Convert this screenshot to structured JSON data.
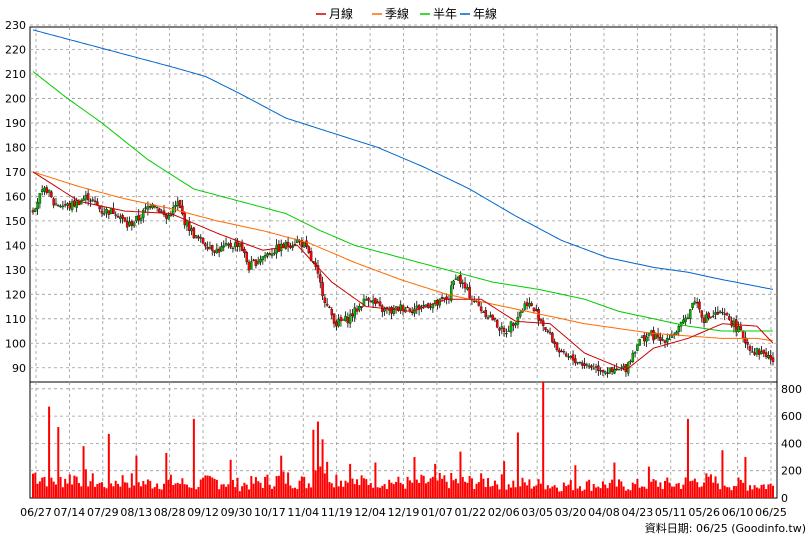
{
  "chart_data": {
    "type": "candlestick",
    "legend": [
      {
        "name": "月線",
        "color": "#cc0000"
      },
      {
        "name": "季線",
        "color": "#ff6a00"
      },
      {
        "name": "半年",
        "color": "#00cc00"
      },
      {
        "name": "年線",
        "color": "#0066cc"
      }
    ],
    "price_axis": {
      "min": 85,
      "max": 230,
      "ticks": [
        230,
        220,
        210,
        200,
        190,
        180,
        170,
        160,
        150,
        140,
        130,
        120,
        110,
        100,
        90
      ]
    },
    "volume_axis": {
      "min": 0,
      "max": 850,
      "ticks": [
        800,
        600,
        400,
        200,
        0
      ]
    },
    "x_ticks": [
      "06/27",
      "07/14",
      "07/29",
      "08/13",
      "08/28",
      "09/12",
      "09/30",
      "10/17",
      "11/04",
      "11/19",
      "12/04",
      "12/19",
      "01/07",
      "01/22",
      "02/06",
      "03/05",
      "03/20",
      "04/08",
      "04/23",
      "05/11",
      "05/26",
      "06/10",
      "06/25"
    ],
    "price_keyframes": [
      {
        "i": 0,
        "v": 155
      },
      {
        "i": 3,
        "v": 160
      },
      {
        "i": 6,
        "v": 163
      },
      {
        "i": 9,
        "v": 157
      },
      {
        "i": 16,
        "v": 156
      },
      {
        "i": 24,
        "v": 160
      },
      {
        "i": 30,
        "v": 154
      },
      {
        "i": 36,
        "v": 154
      },
      {
        "i": 41,
        "v": 148
      },
      {
        "i": 46,
        "v": 151
      },
      {
        "i": 52,
        "v": 158
      },
      {
        "i": 58,
        "v": 151
      },
      {
        "i": 63,
        "v": 157
      },
      {
        "i": 66,
        "v": 150
      },
      {
        "i": 71,
        "v": 143
      },
      {
        "i": 80,
        "v": 138
      },
      {
        "i": 90,
        "v": 141
      },
      {
        "i": 94,
        "v": 131
      },
      {
        "i": 99,
        "v": 135
      },
      {
        "i": 105,
        "v": 138
      },
      {
        "i": 110,
        "v": 140
      },
      {
        "i": 115,
        "v": 142
      },
      {
        "i": 118,
        "v": 140
      },
      {
        "i": 123,
        "v": 130
      },
      {
        "i": 128,
        "v": 115
      },
      {
        "i": 132,
        "v": 108
      },
      {
        "i": 137,
        "v": 110
      },
      {
        "i": 141,
        "v": 114
      },
      {
        "i": 146,
        "v": 119
      },
      {
        "i": 151,
        "v": 114
      },
      {
        "i": 156,
        "v": 113
      },
      {
        "i": 161,
        "v": 115
      },
      {
        "i": 166,
        "v": 114
      },
      {
        "i": 172,
        "v": 116
      },
      {
        "i": 176,
        "v": 116
      },
      {
        "i": 181,
        "v": 119
      },
      {
        "i": 184,
        "v": 128
      },
      {
        "i": 189,
        "v": 121
      },
      {
        "i": 195,
        "v": 114
      },
      {
        "i": 200,
        "v": 110
      },
      {
        "i": 205,
        "v": 104
      },
      {
        "i": 210,
        "v": 110
      },
      {
        "i": 215,
        "v": 117
      },
      {
        "i": 220,
        "v": 111
      },
      {
        "i": 225,
        "v": 103
      },
      {
        "i": 230,
        "v": 95
      },
      {
        "i": 236,
        "v": 93
      },
      {
        "i": 241,
        "v": 91
      },
      {
        "i": 246,
        "v": 90
      },
      {
        "i": 252,
        "v": 88
      },
      {
        "i": 258,
        "v": 90
      },
      {
        "i": 263,
        "v": 100
      },
      {
        "i": 268,
        "v": 104
      },
      {
        "i": 273,
        "v": 101
      },
      {
        "i": 279,
        "v": 104
      },
      {
        "i": 283,
        "v": 108
      },
      {
        "i": 288,
        "v": 118
      },
      {
        "i": 292,
        "v": 110
      },
      {
        "i": 298,
        "v": 112
      },
      {
        "i": 303,
        "v": 110
      },
      {
        "i": 308,
        "v": 104
      },
      {
        "i": 313,
        "v": 97
      },
      {
        "i": 318,
        "v": 96
      },
      {
        "i": 322,
        "v": 93
      }
    ],
    "ma_month": [
      {
        "i": 0,
        "v": 170
      },
      {
        "i": 20,
        "v": 158
      },
      {
        "i": 40,
        "v": 154
      },
      {
        "i": 60,
        "v": 153
      },
      {
        "i": 80,
        "v": 145
      },
      {
        "i": 100,
        "v": 138
      },
      {
        "i": 115,
        "v": 140
      },
      {
        "i": 130,
        "v": 125
      },
      {
        "i": 145,
        "v": 115
      },
      {
        "i": 165,
        "v": 113
      },
      {
        "i": 180,
        "v": 118
      },
      {
        "i": 195,
        "v": 118
      },
      {
        "i": 210,
        "v": 109
      },
      {
        "i": 225,
        "v": 108
      },
      {
        "i": 240,
        "v": 96
      },
      {
        "i": 258,
        "v": 89
      },
      {
        "i": 270,
        "v": 98
      },
      {
        "i": 285,
        "v": 102
      },
      {
        "i": 300,
        "v": 108
      },
      {
        "i": 315,
        "v": 107
      },
      {
        "i": 322,
        "v": 100
      }
    ],
    "ma_quarter": [
      {
        "i": 0,
        "v": 170
      },
      {
        "i": 20,
        "v": 164
      },
      {
        "i": 40,
        "v": 159
      },
      {
        "i": 60,
        "v": 155
      },
      {
        "i": 80,
        "v": 150
      },
      {
        "i": 100,
        "v": 146
      },
      {
        "i": 120,
        "v": 141
      },
      {
        "i": 140,
        "v": 133
      },
      {
        "i": 160,
        "v": 126
      },
      {
        "i": 180,
        "v": 120
      },
      {
        "i": 200,
        "v": 116
      },
      {
        "i": 220,
        "v": 112
      },
      {
        "i": 240,
        "v": 108
      },
      {
        "i": 255,
        "v": 106
      },
      {
        "i": 270,
        "v": 104
      },
      {
        "i": 285,
        "v": 103
      },
      {
        "i": 300,
        "v": 102
      },
      {
        "i": 315,
        "v": 102
      },
      {
        "i": 322,
        "v": 101
      }
    ],
    "ma_half": [
      {
        "i": 0,
        "v": 211
      },
      {
        "i": 15,
        "v": 200
      },
      {
        "i": 30,
        "v": 190
      },
      {
        "i": 50,
        "v": 175
      },
      {
        "i": 70,
        "v": 163
      },
      {
        "i": 90,
        "v": 158
      },
      {
        "i": 110,
        "v": 153
      },
      {
        "i": 125,
        "v": 146
      },
      {
        "i": 140,
        "v": 140
      },
      {
        "i": 160,
        "v": 135
      },
      {
        "i": 180,
        "v": 130
      },
      {
        "i": 200,
        "v": 125
      },
      {
        "i": 220,
        "v": 122
      },
      {
        "i": 240,
        "v": 118
      },
      {
        "i": 255,
        "v": 113
      },
      {
        "i": 270,
        "v": 110
      },
      {
        "i": 285,
        "v": 107
      },
      {
        "i": 300,
        "v": 105
      },
      {
        "i": 322,
        "v": 105
      }
    ],
    "ma_year": [
      {
        "i": 0,
        "v": 228
      },
      {
        "i": 20,
        "v": 223
      },
      {
        "i": 40,
        "v": 218
      },
      {
        "i": 60,
        "v": 213
      },
      {
        "i": 75,
        "v": 209
      },
      {
        "i": 90,
        "v": 202
      },
      {
        "i": 110,
        "v": 192
      },
      {
        "i": 130,
        "v": 186
      },
      {
        "i": 150,
        "v": 180
      },
      {
        "i": 170,
        "v": 172
      },
      {
        "i": 190,
        "v": 163
      },
      {
        "i": 210,
        "v": 152
      },
      {
        "i": 230,
        "v": 142
      },
      {
        "i": 250,
        "v": 135
      },
      {
        "i": 270,
        "v": 131
      },
      {
        "i": 285,
        "v": 129
      },
      {
        "i": 300,
        "v": 126
      },
      {
        "i": 322,
        "v": 122
      }
    ],
    "volume_keyframes": [
      {
        "i": 0,
        "v": 200
      },
      {
        "i": 10,
        "v": 140
      },
      {
        "i": 20,
        "v": 180
      },
      {
        "i": 30,
        "v": 110
      },
      {
        "i": 40,
        "v": 150
      },
      {
        "i": 50,
        "v": 120
      },
      {
        "i": 60,
        "v": 130
      },
      {
        "i": 70,
        "v": 110
      },
      {
        "i": 80,
        "v": 140
      },
      {
        "i": 90,
        "v": 110
      },
      {
        "i": 100,
        "v": 130
      },
      {
        "i": 110,
        "v": 160
      },
      {
        "i": 120,
        "v": 120
      },
      {
        "i": 125,
        "v": 300
      },
      {
        "i": 130,
        "v": 180
      },
      {
        "i": 140,
        "v": 120
      },
      {
        "i": 150,
        "v": 150
      },
      {
        "i": 160,
        "v": 120
      },
      {
        "i": 170,
        "v": 130
      },
      {
        "i": 180,
        "v": 140
      },
      {
        "i": 190,
        "v": 130
      },
      {
        "i": 200,
        "v": 140
      },
      {
        "i": 210,
        "v": 120
      },
      {
        "i": 220,
        "v": 110
      },
      {
        "i": 230,
        "v": 100
      },
      {
        "i": 240,
        "v": 110
      },
      {
        "i": 250,
        "v": 110
      },
      {
        "i": 260,
        "v": 100
      },
      {
        "i": 270,
        "v": 120
      },
      {
        "i": 280,
        "v": 110
      },
      {
        "i": 290,
        "v": 150
      },
      {
        "i": 300,
        "v": 120
      },
      {
        "i": 310,
        "v": 110
      },
      {
        "i": 322,
        "v": 100
      }
    ],
    "volume_spikes": [
      {
        "i": 7,
        "v": 670
      },
      {
        "i": 11,
        "v": 520
      },
      {
        "i": 22,
        "v": 380
      },
      {
        "i": 33,
        "v": 470
      },
      {
        "i": 45,
        "v": 310
      },
      {
        "i": 58,
        "v": 330
      },
      {
        "i": 70,
        "v": 580
      },
      {
        "i": 86,
        "v": 280
      },
      {
        "i": 108,
        "v": 310
      },
      {
        "i": 122,
        "v": 500
      },
      {
        "i": 124,
        "v": 560
      },
      {
        "i": 126,
        "v": 430
      },
      {
        "i": 138,
        "v": 250
      },
      {
        "i": 149,
        "v": 260
      },
      {
        "i": 166,
        "v": 300
      },
      {
        "i": 175,
        "v": 250
      },
      {
        "i": 186,
        "v": 340
      },
      {
        "i": 205,
        "v": 270
      },
      {
        "i": 211,
        "v": 480
      },
      {
        "i": 222,
        "v": 860
      },
      {
        "i": 236,
        "v": 240
      },
      {
        "i": 253,
        "v": 260
      },
      {
        "i": 268,
        "v": 230
      },
      {
        "i": 285,
        "v": 580
      },
      {
        "i": 300,
        "v": 350
      },
      {
        "i": 310,
        "v": 300
      }
    ],
    "colors": {
      "up": "#00b400",
      "down": "#ff0000",
      "wick": "#000000",
      "volume": "#ff0000",
      "grid": "#9a9a9a",
      "axis": "#000000"
    }
  },
  "footer": {
    "text": "資料日期: 06/25 (Goodinfo.tw)"
  }
}
